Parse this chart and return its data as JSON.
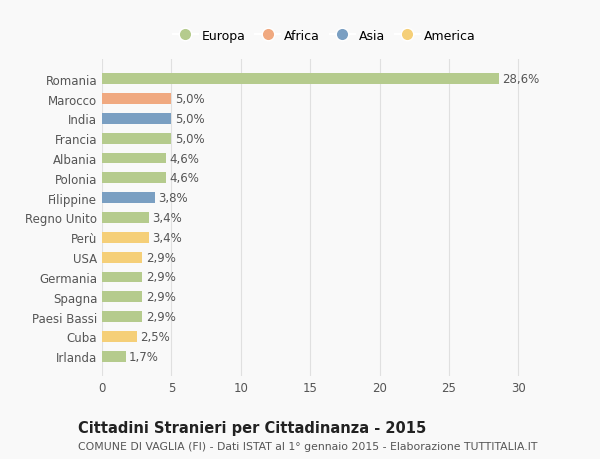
{
  "countries": [
    "Romania",
    "Marocco",
    "India",
    "Francia",
    "Albania",
    "Polonia",
    "Filippine",
    "Regno Unito",
    "Perù",
    "USA",
    "Germania",
    "Spagna",
    "Paesi Bassi",
    "Cuba",
    "Irlanda"
  ],
  "values": [
    28.6,
    5.0,
    5.0,
    5.0,
    4.6,
    4.6,
    3.8,
    3.4,
    3.4,
    2.9,
    2.9,
    2.9,
    2.9,
    2.5,
    1.7
  ],
  "labels": [
    "28,6%",
    "5,0%",
    "5,0%",
    "5,0%",
    "4,6%",
    "4,6%",
    "3,8%",
    "3,4%",
    "3,4%",
    "2,9%",
    "2,9%",
    "2,9%",
    "2,9%",
    "2,5%",
    "1,7%"
  ],
  "continents": [
    "Europa",
    "Africa",
    "Asia",
    "Europa",
    "Europa",
    "Europa",
    "Asia",
    "Europa",
    "America",
    "America",
    "Europa",
    "Europa",
    "Europa",
    "America",
    "Europa"
  ],
  "continent_colors": {
    "Europa": "#b5cb8d",
    "Africa": "#f0a980",
    "Asia": "#7a9fc2",
    "America": "#f5cf78"
  },
  "legend_order": [
    "Europa",
    "Africa",
    "Asia",
    "America"
  ],
  "title": "Cittadini Stranieri per Cittadinanza - 2015",
  "subtitle": "COMUNE DI VAGLIA (FI) - Dati ISTAT al 1° gennaio 2015 - Elaborazione TUTTITALIA.IT",
  "xlim": [
    0,
    32
  ],
  "xticks": [
    0,
    5,
    10,
    15,
    20,
    25,
    30
  ],
  "background_color": "#f9f9f9",
  "grid_color": "#e0e0e0",
  "bar_height": 0.55,
  "label_fontsize": 8.5,
  "tick_fontsize": 8.5,
  "title_fontsize": 10.5,
  "subtitle_fontsize": 7.8
}
